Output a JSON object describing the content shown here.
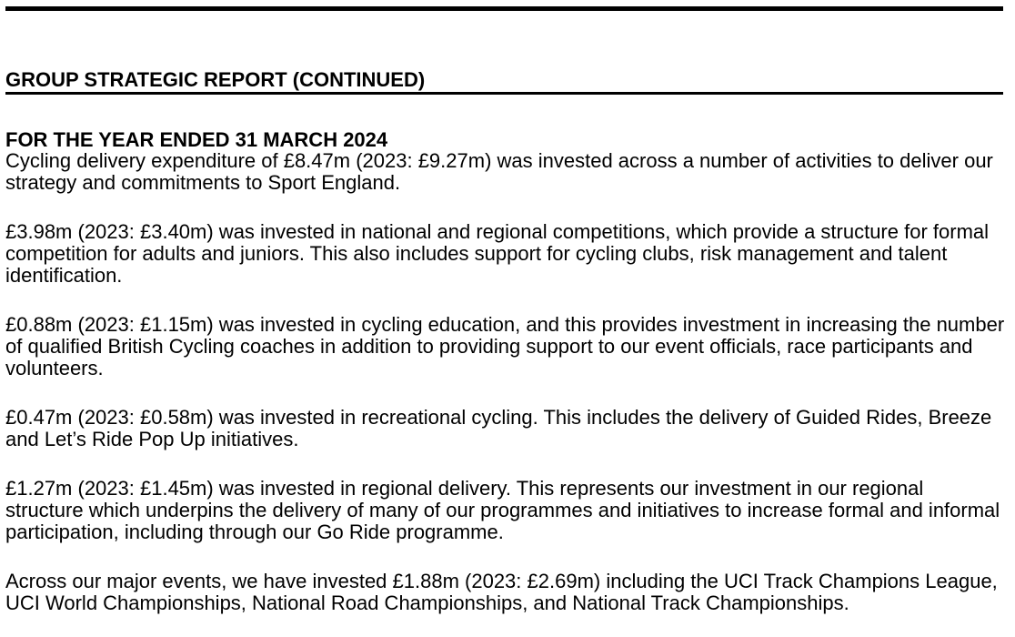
{
  "page": {
    "background": "#ffffff",
    "text_color": "#000000",
    "rule_color": "#000000",
    "header": {
      "line1": "GROUP STRATEGIC REPORT (CONTINUED)",
      "line2": "FOR THE YEAR ENDED 31 MARCH 2024"
    },
    "paragraphs": [
      {
        "lines": [
          "Cycling delivery expenditure of £8.47m (2023: £9.27m) was invested across a number of activities to deliver our",
          "strategy and commitments to Sport England."
        ]
      },
      {
        "lines": [
          "£3.98m (2023: £3.40m) was invested in national and regional competitions, which provide a structure for formal",
          "competition for adults and juniors. This also includes support for cycling clubs, risk management and talent",
          "identification."
        ]
      },
      {
        "lines": [
          "£0.88m (2023: £1.15m) was invested in cycling education, and this provides investment in increasing the number",
          "of qualified British Cycling coaches in addition to providing support to our event officials, race participants and",
          "volunteers."
        ]
      },
      {
        "lines": [
          "£0.47m (2023: £0.58m) was invested in recreational cycling. This includes the delivery of Guided Rides, Breeze",
          "and Let’s Ride Pop Up initiatives."
        ]
      },
      {
        "lines": [
          "£1.27m (2023: £1.45m) was invested in regional delivery. This represents our investment in our regional",
          "structure which underpins the delivery of many of our programmes and initiatives to increase formal and informal",
          "participation, including through our Go Ride programme."
        ]
      },
      {
        "lines": [
          "Across our major events, we have invested £1.88m (2023: £2.69m) including the UCI Track Champions League,",
          "UCI World Championships, National Road Championships, and National Track Championships."
        ]
      }
    ]
  }
}
